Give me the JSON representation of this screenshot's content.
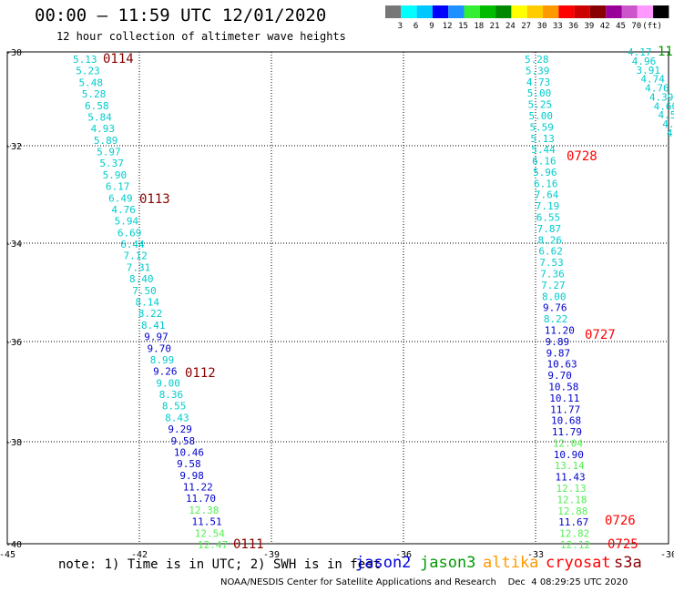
{
  "header": {
    "title": "00:00 – 11:59 UTC 12/01/2020",
    "subtitle": "12 hour collection of altimeter wave heights"
  },
  "legend": {
    "colors": [
      "#777777",
      "#00ffff",
      "#00c8ff",
      "#0000ff",
      "#1e90ff",
      "#33ee33",
      "#00bb00",
      "#008800",
      "#ffff00",
      "#ffcc00",
      "#ff9900",
      "#ff0000",
      "#cc0000",
      "#880000",
      "#990099",
      "#cc55cc",
      "#ff99ff",
      "#000000"
    ],
    "labels": [
      "3",
      "6",
      "9",
      "12",
      "15",
      "18",
      "21",
      "24",
      "27",
      "30",
      "33",
      "36",
      "39",
      "42",
      "45",
      "70",
      "(ft)"
    ]
  },
  "axes": {
    "y_labels": [
      "-30",
      "-32",
      "-34",
      "-36",
      "-38",
      "-40"
    ],
    "x_labels": [
      "-45",
      "-42",
      "-39",
      "-36",
      "-33",
      "-30"
    ]
  },
  "colors": {
    "cyan": "#00cccc",
    "blue": "#0000cc",
    "green": "#55ee55",
    "darkred": "#880000",
    "red": "#ff0000",
    "darkgreen": "#009900"
  },
  "pass_labels": [
    {
      "text": "0114",
      "color": "darkred"
    },
    {
      "text": "0113",
      "color": "darkred"
    },
    {
      "text": "0112",
      "color": "darkred"
    },
    {
      "text": "0111",
      "color": "darkred"
    },
    {
      "text": "0728",
      "color": "red"
    },
    {
      "text": "0727",
      "color": "red"
    },
    {
      "text": "0726",
      "color": "red"
    },
    {
      "text": "0725",
      "color": "red"
    },
    {
      "text": "11",
      "color": "darkgreen"
    }
  ],
  "tracks": [
    {
      "name": "west",
      "values": [
        {
          "v": "5.13",
          "c": "cyan"
        },
        {
          "v": "5.23",
          "c": "cyan"
        },
        {
          "v": "5.48",
          "c": "cyan"
        },
        {
          "v": "5.28",
          "c": "cyan"
        },
        {
          "v": "6.58",
          "c": "cyan"
        },
        {
          "v": "5.84",
          "c": "cyan"
        },
        {
          "v": "4.93",
          "c": "cyan"
        },
        {
          "v": "5.89",
          "c": "cyan"
        },
        {
          "v": "5.97",
          "c": "cyan"
        },
        {
          "v": "5.37",
          "c": "cyan"
        },
        {
          "v": "5.90",
          "c": "cyan"
        },
        {
          "v": "6.17",
          "c": "cyan"
        },
        {
          "v": "6.49",
          "c": "cyan"
        },
        {
          "v": "4.76",
          "c": "cyan"
        },
        {
          "v": "5.94",
          "c": "cyan"
        },
        {
          "v": "6.69",
          "c": "cyan"
        },
        {
          "v": "6.44",
          "c": "cyan"
        },
        {
          "v": "7.12",
          "c": "cyan"
        },
        {
          "v": "7.31",
          "c": "cyan"
        },
        {
          "v": "8.40",
          "c": "cyan"
        },
        {
          "v": "7.50",
          "c": "cyan"
        },
        {
          "v": "8.14",
          "c": "cyan"
        },
        {
          "v": "8.22",
          "c": "cyan"
        },
        {
          "v": "8.41",
          "c": "cyan"
        },
        {
          "v": "9.97",
          "c": "blue"
        },
        {
          "v": "9.70",
          "c": "blue"
        },
        {
          "v": "8.99",
          "c": "cyan"
        },
        {
          "v": "9.26",
          "c": "blue"
        },
        {
          "v": "9.00",
          "c": "cyan"
        },
        {
          "v": "8.36",
          "c": "cyan"
        },
        {
          "v": "8.55",
          "c": "cyan"
        },
        {
          "v": "8.43",
          "c": "cyan"
        },
        {
          "v": "9.29",
          "c": "blue"
        },
        {
          "v": "9.58",
          "c": "blue"
        },
        {
          "v": "10.46",
          "c": "blue"
        },
        {
          "v": "9.58",
          "c": "blue"
        },
        {
          "v": "9.98",
          "c": "blue"
        },
        {
          "v": "11.22",
          "c": "blue"
        },
        {
          "v": "11.70",
          "c": "blue"
        },
        {
          "v": "12.38",
          "c": "green"
        },
        {
          "v": "11.51",
          "c": "blue"
        },
        {
          "v": "12.54",
          "c": "green"
        },
        {
          "v": "12.47",
          "c": "green"
        }
      ]
    },
    {
      "name": "east",
      "values": [
        {
          "v": "5.28",
          "c": "cyan"
        },
        {
          "v": "5.39",
          "c": "cyan"
        },
        {
          "v": "4.73",
          "c": "cyan"
        },
        {
          "v": "5.00",
          "c": "cyan"
        },
        {
          "v": "5.25",
          "c": "cyan"
        },
        {
          "v": "5.00",
          "c": "cyan"
        },
        {
          "v": "5.59",
          "c": "cyan"
        },
        {
          "v": "5.13",
          "c": "cyan"
        },
        {
          "v": "5.44",
          "c": "cyan"
        },
        {
          "v": "6.16",
          "c": "cyan"
        },
        {
          "v": "5.96",
          "c": "cyan"
        },
        {
          "v": "6.16",
          "c": "cyan"
        },
        {
          "v": "7.64",
          "c": "cyan"
        },
        {
          "v": "7.19",
          "c": "cyan"
        },
        {
          "v": "6.55",
          "c": "cyan"
        },
        {
          "v": "7.87",
          "c": "cyan"
        },
        {
          "v": "8.26",
          "c": "cyan"
        },
        {
          "v": "6.62",
          "c": "cyan"
        },
        {
          "v": "7.53",
          "c": "cyan"
        },
        {
          "v": "7.36",
          "c": "cyan"
        },
        {
          "v": "7.27",
          "c": "cyan"
        },
        {
          "v": "8.00",
          "c": "cyan"
        },
        {
          "v": "9.76",
          "c": "blue"
        },
        {
          "v": "8.22",
          "c": "cyan"
        },
        {
          "v": "11.20",
          "c": "blue"
        },
        {
          "v": "9.89",
          "c": "blue"
        },
        {
          "v": "9.87",
          "c": "blue"
        },
        {
          "v": "10.63",
          "c": "blue"
        },
        {
          "v": "9.70",
          "c": "blue"
        },
        {
          "v": "10.58",
          "c": "blue"
        },
        {
          "v": "10.11",
          "c": "blue"
        },
        {
          "v": "11.77",
          "c": "blue"
        },
        {
          "v": "10.68",
          "c": "blue"
        },
        {
          "v": "11.79",
          "c": "blue"
        },
        {
          "v": "12.04",
          "c": "green"
        },
        {
          "v": "10.90",
          "c": "blue"
        },
        {
          "v": "13.14",
          "c": "green"
        },
        {
          "v": "11.43",
          "c": "blue"
        },
        {
          "v": "12.13",
          "c": "green"
        },
        {
          "v": "12.18",
          "c": "green"
        },
        {
          "v": "12.88",
          "c": "green"
        },
        {
          "v": "11.67",
          "c": "blue"
        },
        {
          "v": "12.82",
          "c": "green"
        },
        {
          "v": "12.12",
          "c": "green"
        }
      ]
    },
    {
      "name": "northeast",
      "values": [
        {
          "v": "4.17",
          "c": "cyan"
        },
        {
          "v": "4.96",
          "c": "cyan"
        },
        {
          "v": "3.91",
          "c": "cyan"
        },
        {
          "v": "4.74",
          "c": "cyan"
        },
        {
          "v": "4.76",
          "c": "cyan"
        },
        {
          "v": "4.39",
          "c": "cyan"
        },
        {
          "v": "4.60",
          "c": "cyan"
        },
        {
          "v": "4.5",
          "c": "cyan"
        },
        {
          "v": "4.",
          "c": "cyan"
        },
        {
          "v": "4",
          "c": "cyan"
        }
      ]
    }
  ],
  "footer": {
    "note": "note: 1) Time is in UTC; 2) SWH is in feet",
    "satellites": [
      {
        "name": "jason2",
        "color": "#0000dd"
      },
      {
        "name": "jason3",
        "color": "#009900"
      },
      {
        "name": "altika",
        "color": "#ff9900"
      },
      {
        "name": "cryosat",
        "color": "#ff0000"
      },
      {
        "name": "s3a",
        "color": "#880000"
      }
    ],
    "credit": "NOAA/NESDIS Center for Satellite Applications and Research    Dec  4 08:29:25 UTC 2020"
  }
}
